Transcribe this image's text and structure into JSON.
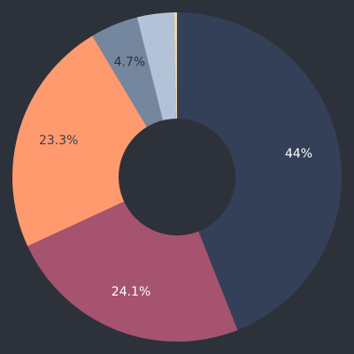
{
  "chart_data": {
    "type": "pie",
    "donut": true,
    "categories": [
      "",
      "",
      "",
      "",
      "",
      ""
    ],
    "values": [
      44,
      24.1,
      23.3,
      4.7,
      3.6,
      0.3
    ],
    "labels": [
      "44%",
      "24.1%",
      "23.3%",
      "4.7%",
      "",
      ""
    ],
    "colors": [
      "#334058",
      "#a6536f",
      "#ff9a6e",
      "#75879f",
      "#b3c3d7",
      "#e8d8b0"
    ],
    "label_colors": [
      "#ffffff",
      "#ffffff",
      "#3b3f49",
      "#2a2f38",
      "#2a2f38",
      "#2a2f38"
    ],
    "legend": "bottom",
    "background": "#2d313a",
    "hole_color": "#2d313a"
  }
}
